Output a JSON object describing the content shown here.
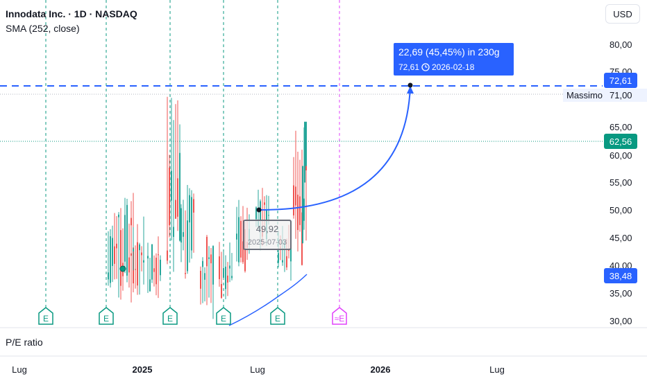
{
  "header": {
    "title": "Innodata Inc. · 1D · NASDAQ",
    "indicator": "SMA (252, close)"
  },
  "currency_button": "USD",
  "pane_label": "P/E ratio",
  "chart_data": {
    "type": "candlestick",
    "y_axis_labels": [
      "80,00",
      "75,00",
      "71,00",
      "65,00",
      "60,00",
      "55,00",
      "50,00",
      "45,00",
      "40,00",
      "35,00",
      "30,00"
    ],
    "x_axis_labels": [
      "Lug",
      "2025",
      "Lug",
      "2026",
      "Lug"
    ],
    "price_tags": {
      "target": "72,61",
      "last": "62,56",
      "sma": "38,48"
    },
    "horizontal_line_label": "Massimo",
    "projection_label": {
      "line1": "22,69 (45,45%) in 230g",
      "line2_value": "72,61",
      "line2_date": "2026-02-18"
    },
    "anchor_label": {
      "value": "49,92",
      "date": "2025-07-03"
    },
    "earnings_markers": [
      "E",
      "E",
      "E",
      "E",
      "E"
    ],
    "future_earnings_marker": "≈E",
    "colors": {
      "up": "#26a69a",
      "down": "#ef5350",
      "sma": "#2962ff",
      "projection": "#2962ff",
      "tag_blue": "#2962ff",
      "tag_green": "#089981",
      "earnings_green": "#089981",
      "future_earnings": "#e040fb"
    },
    "candles_approx": [
      {
        "date": "2024-10",
        "low": 33,
        "high": 50
      },
      {
        "date": "2024-11",
        "low": 34,
        "high": 55
      },
      {
        "date": "2024-12",
        "low": 33,
        "high": 49
      },
      {
        "date": "2025-01",
        "low": 34,
        "high": 46
      },
      {
        "date": "2025-02",
        "low": 38,
        "high": 71
      },
      {
        "date": "2025-03",
        "low": 37,
        "high": 57
      },
      {
        "date": "2025-04",
        "low": 30,
        "high": 46
      },
      {
        "date": "2025-05",
        "low": 33,
        "high": 45
      },
      {
        "date": "2025-06",
        "low": 38,
        "high": 52
      },
      {
        "date": "2025-07",
        "low": 42,
        "high": 56
      },
      {
        "date": "2025-08",
        "low": 37,
        "high": 49
      },
      {
        "date": "2025-09",
        "low": 40,
        "high": 66
      }
    ],
    "sma_points": [
      {
        "date": "2025-04",
        "value": 29
      },
      {
        "date": "2025-06",
        "value": 32
      },
      {
        "date": "2025-08",
        "value": 36
      },
      {
        "date": "2025-09",
        "value": 38.5
      }
    ]
  }
}
